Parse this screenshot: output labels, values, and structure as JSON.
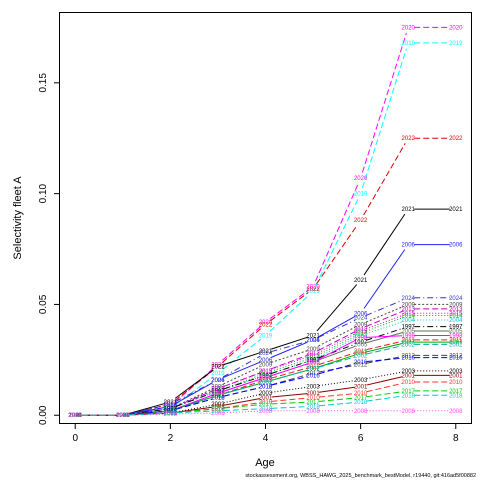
{
  "chart_data": {
    "type": "line",
    "xlabel": "Age",
    "ylabel": "Selectivity fleet A",
    "xlim": [
      -0.32,
      8.32
    ],
    "ylim": [
      -0.0035,
      0.1815
    ],
    "x_ticks": [
      "0",
      "2",
      "4",
      "6",
      "8"
    ],
    "y_ticks": [
      "0.00",
      "0.05",
      "0.10",
      "0.15"
    ],
    "footer": "stockassessment.org, WBSS_HAWG_2025_benchmark_bestModel, r19440, git:416ad5f00882",
    "x": [
      0,
      1,
      2,
      3,
      4,
      5,
      6,
      7,
      8
    ],
    "series": [
      {
        "name": "2020",
        "color": "#ff00ff",
        "dash": "6,3",
        "values": [
          0,
          0,
          0.004,
          0.023,
          0.042,
          0.058,
          0.107,
          0.175,
          0.175
        ]
      },
      {
        "name": "2019",
        "color": "#00ffff",
        "dash": "6,3",
        "values": [
          0,
          0,
          0.003,
          0.019,
          0.036,
          0.056,
          0.1,
          0.168,
          0.168
        ]
      },
      {
        "name": "2022",
        "color": "#dd0000",
        "dash": "6,3",
        "values": [
          0,
          0,
          0.005,
          0.022,
          0.041,
          0.057,
          0.088,
          0.125,
          0.125
        ]
      },
      {
        "name": "2021",
        "color": "#000000",
        "dash": "",
        "values": [
          0,
          0,
          0.006,
          0.022,
          0.029,
          0.036,
          0.061,
          0.093,
          0.093
        ]
      },
      {
        "name": "2006",
        "color": "#2222ee",
        "dash": "",
        "values": [
          0,
          0,
          0.004,
          0.016,
          0.025,
          0.034,
          0.046,
          0.077,
          0.077
        ]
      },
      {
        "name": "2024",
        "color": "#3333cc",
        "dash": "6,3,1,3",
        "values": [
          0,
          0,
          0.005,
          0.016,
          0.028,
          0.034,
          0.044,
          0.053,
          0.053
        ]
      },
      {
        "name": "2009",
        "color": "#444444",
        "dash": "2,2",
        "values": [
          0,
          0,
          0.003,
          0.013,
          0.023,
          0.03,
          0.041,
          0.05,
          0.05
        ]
      },
      {
        "name": "2013",
        "color": "#bb00bb",
        "dash": "6,3",
        "values": [
          0,
          0,
          0.003,
          0.012,
          0.02,
          0.028,
          0.039,
          0.048,
          0.048
        ]
      },
      {
        "name": "2015",
        "color": "#dd00dd",
        "dash": "1,2",
        "values": [
          0,
          0,
          0.003,
          0.012,
          0.02,
          0.027,
          0.038,
          0.046,
          0.046
        ]
      },
      {
        "name": "2014",
        "color": "#00bb00",
        "dash": "1,2",
        "values": [
          0,
          0,
          0.003,
          0.011,
          0.019,
          0.026,
          0.037,
          0.045,
          0.045
        ]
      },
      {
        "name": "2004",
        "color": "#00cccc",
        "dash": "1,2",
        "values": [
          0,
          0,
          0.003,
          0.011,
          0.018,
          0.025,
          0.036,
          0.043,
          0.043
        ]
      },
      {
        "name": "1997",
        "color": "#000000",
        "dash": "6,3,1,3",
        "values": [
          0,
          0,
          0.003,
          0.011,
          0.018,
          0.025,
          0.033,
          0.04,
          0.04
        ]
      },
      {
        "name": "2005",
        "color": "#666666",
        "dash": "",
        "values": [
          0,
          0,
          0.002,
          0.01,
          0.017,
          0.024,
          0.032,
          0.038,
          0.038
        ]
      },
      {
        "name": "1998",
        "color": "#ff00ff",
        "dash": "",
        "values": [
          0,
          0,
          0.002,
          0.01,
          0.017,
          0.024,
          0.035,
          0.036,
          0.036
        ]
      },
      {
        "name": "2011",
        "color": "#dd2222",
        "dash": "6,3",
        "values": [
          0,
          0,
          0.002,
          0.009,
          0.016,
          0.022,
          0.029,
          0.034,
          0.034
        ]
      },
      {
        "name": "2007",
        "color": "#00aa00",
        "dash": "",
        "values": [
          0,
          0,
          0.002,
          0.009,
          0.015,
          0.021,
          0.028,
          0.033,
          0.033
        ]
      },
      {
        "name": "2002",
        "color": "#00aaaa",
        "dash": "6,3",
        "values": [
          0,
          0,
          0.002,
          0.009,
          0.015,
          0.021,
          0.027,
          0.032,
          0.032
        ]
      },
      {
        "name": "2012",
        "color": "#444444",
        "dash": "6,3",
        "values": [
          0,
          0,
          0.002,
          0.008,
          0.013,
          0.019,
          0.023,
          0.027,
          0.027
        ]
      },
      {
        "name": "2016",
        "color": "#0000ff",
        "dash": "6,3",
        "values": [
          0,
          0,
          0.002,
          0.008,
          0.013,
          0.018,
          0.024,
          0.026,
          0.026
        ]
      },
      {
        "name": "2003",
        "color": "#000000",
        "dash": "1,2",
        "values": [
          0,
          0,
          0.001,
          0.005,
          0.01,
          0.013,
          0.016,
          0.02,
          0.02
        ]
      },
      {
        "name": "2001",
        "color": "#8b0000",
        "dash": "",
        "values": [
          0,
          0,
          0.001,
          0.004,
          0.008,
          0.01,
          0.013,
          0.018,
          0.018
        ]
      },
      {
        "name": "2010",
        "color": "#ff3333",
        "dash": "6,3",
        "values": [
          0,
          0,
          0.001,
          0.003,
          0.006,
          0.008,
          0.01,
          0.015,
          0.015
        ]
      },
      {
        "name": "2017",
        "color": "#00cc00",
        "dash": "6,3",
        "values": [
          0,
          0,
          0.001,
          0.003,
          0.005,
          0.006,
          0.008,
          0.011,
          0.011
        ]
      },
      {
        "name": "2018",
        "color": "#00cccc",
        "dash": "6,3",
        "values": [
          0,
          0,
          0.001,
          0.002,
          0.003,
          0.004,
          0.006,
          0.009,
          0.009
        ]
      },
      {
        "name": "2008",
        "color": "#ff44ff",
        "dash": "1,2",
        "values": [
          0,
          0,
          0.0005,
          0.001,
          0.002,
          0.002,
          0.002,
          0.002,
          0.002
        ]
      }
    ]
  }
}
